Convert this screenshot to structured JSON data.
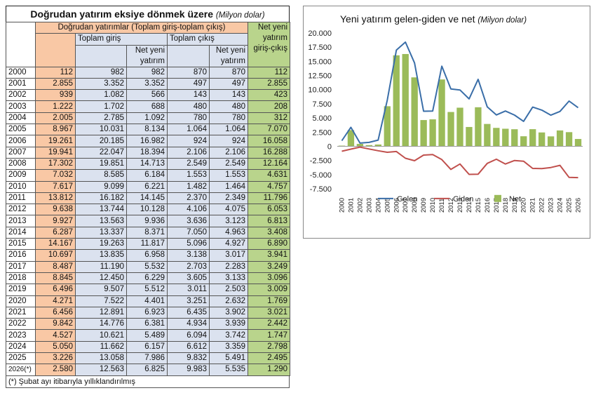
{
  "table": {
    "title": "Doğrudan yatırım eksiye dönmek üzere",
    "title_unit": "(Milyon dolar)",
    "group_header": "Doğrudan yatırımlar (Toplam giriş-toplam çıkış)",
    "group_in": "Toplam giriş",
    "group_out": "Toplam çıkış",
    "col_net_in": "Net yeni yatırım",
    "col_net_out": "Net yeni yatırım",
    "col_net_total": "Net yeni yatırım giriş-çıkış",
    "rows": [
      {
        "year": "2000",
        "direct": "112",
        "in_total": "982",
        "in_net": "982",
        "out_total": "870",
        "out_net": "870",
        "net": "112"
      },
      {
        "year": "2001",
        "direct": "2.855",
        "in_total": "3.352",
        "in_net": "3.352",
        "out_total": "497",
        "out_net": "497",
        "net": "2.855"
      },
      {
        "year": "2002",
        "direct": "939",
        "in_total": "1.082",
        "in_net": "566",
        "out_total": "143",
        "out_net": "143",
        "net": "423"
      },
      {
        "year": "2003",
        "direct": "1.222",
        "in_total": "1.702",
        "in_net": "688",
        "out_total": "480",
        "out_net": "480",
        "net": "208"
      },
      {
        "year": "2004",
        "direct": "2.005",
        "in_total": "2.785",
        "in_net": "1.092",
        "out_total": "780",
        "out_net": "780",
        "net": "312"
      },
      {
        "year": "2005",
        "direct": "8.967",
        "in_total": "10.031",
        "in_net": "8.134",
        "out_total": "1.064",
        "out_net": "1.064",
        "net": "7.070"
      },
      {
        "year": "2006",
        "direct": "19.261",
        "in_total": "20.185",
        "in_net": "16.982",
        "out_total": "924",
        "out_net": "924",
        "net": "16.058"
      },
      {
        "year": "2007",
        "direct": "19.941",
        "in_total": "22.047",
        "in_net": "18.394",
        "out_total": "2.106",
        "out_net": "2.106",
        "net": "16.288"
      },
      {
        "year": "2008",
        "direct": "17.302",
        "in_total": "19.851",
        "in_net": "14.713",
        "out_total": "2.549",
        "out_net": "2.549",
        "net": "12.164"
      },
      {
        "year": "2009",
        "direct": "7.032",
        "in_total": "8.585",
        "in_net": "6.184",
        "out_total": "1.553",
        "out_net": "1.553",
        "net": "4.631"
      },
      {
        "year": "2010",
        "direct": "7.617",
        "in_total": "9.099",
        "in_net": "6.221",
        "out_total": "1.482",
        "out_net": "1.464",
        "net": "4.757"
      },
      {
        "year": "2011",
        "direct": "13.812",
        "in_total": "16.182",
        "in_net": "14.145",
        "out_total": "2.370",
        "out_net": "2.349",
        "net": "11.796"
      },
      {
        "year": "2012",
        "direct": "9.638",
        "in_total": "13.744",
        "in_net": "10.128",
        "out_total": "4.106",
        "out_net": "4.075",
        "net": "6.053"
      },
      {
        "year": "2013",
        "direct": "9.927",
        "in_total": "13.563",
        "in_net": "9.936",
        "out_total": "3.636",
        "out_net": "3.123",
        "net": "6.813"
      },
      {
        "year": "2014",
        "direct": "6.287",
        "in_total": "13.337",
        "in_net": "8.371",
        "out_total": "7.050",
        "out_net": "4.963",
        "net": "3.408"
      },
      {
        "year": "2015",
        "direct": "14.167",
        "in_total": "19.263",
        "in_net": "11.817",
        "out_total": "5.096",
        "out_net": "4.927",
        "net": "6.890"
      },
      {
        "year": "2016",
        "direct": "10.697",
        "in_total": "13.835",
        "in_net": "6.958",
        "out_total": "3.138",
        "out_net": "3.017",
        "net": "3.941"
      },
      {
        "year": "2017",
        "direct": "8.487",
        "in_total": "11.190",
        "in_net": "5.532",
        "out_total": "2.703",
        "out_net": "2.283",
        "net": "3.249"
      },
      {
        "year": "2018",
        "direct": "8.845",
        "in_total": "12.450",
        "in_net": "6.229",
        "out_total": "3.605",
        "out_net": "3.133",
        "net": "3.096"
      },
      {
        "year": "2019",
        "direct": "6.496",
        "in_total": "9.507",
        "in_net": "5.512",
        "out_total": "3.011",
        "out_net": "2.503",
        "net": "3.009"
      },
      {
        "year": "2020",
        "direct": "4.271",
        "in_total": "7.522",
        "in_net": "4.401",
        "out_total": "3.251",
        "out_net": "2.632",
        "net": "1.769"
      },
      {
        "year": "2021",
        "direct": "6.456",
        "in_total": "12.891",
        "in_net": "6.923",
        "out_total": "6.435",
        "out_net": "3.902",
        "net": "3.021"
      },
      {
        "year": "2022",
        "direct": "9.842",
        "in_total": "14.776",
        "in_net": "6.381",
        "out_total": "4.934",
        "out_net": "3.939",
        "net": "2.442"
      },
      {
        "year": "2023",
        "direct": "4.527",
        "in_total": "10.621",
        "in_net": "5.489",
        "out_total": "6.094",
        "out_net": "3.742",
        "net": "1.747"
      },
      {
        "year": "2024",
        "direct": "5.050",
        "in_total": "11.662",
        "in_net": "6.157",
        "out_total": "6.612",
        "out_net": "3.359",
        "net": "2.798"
      },
      {
        "year": "2025",
        "direct": "3.226",
        "in_total": "13.058",
        "in_net": "7.986",
        "out_total": "9.832",
        "out_net": "5.491",
        "net": "2.495"
      },
      {
        "year": "2026(*)",
        "direct": "2.580",
        "in_total": "12.563",
        "in_net": "6.825",
        "out_total": "9.983",
        "out_net": "5.535",
        "net": "1.290"
      }
    ],
    "footnote": "(*) Şubat ayı itibarıyla yıllıklandırılmış"
  },
  "chart_data": {
    "type": "bar",
    "title": "Yeni yatırım gelen-giden ve net",
    "title_unit": "(Milyon dolar)",
    "categories": [
      "2000",
      "2001",
      "2002",
      "2003",
      "2004",
      "2005",
      "2006",
      "2007",
      "2008",
      "2009",
      "2010",
      "2011",
      "2012",
      "2013",
      "2014",
      "2015",
      "2016",
      "2017",
      "2018",
      "2019",
      "2020",
      "2021",
      "2022",
      "2023",
      "2024",
      "2025",
      "2026"
    ],
    "ylim": [
      -7500,
      20000
    ],
    "yticks": [
      -7500,
      -5000,
      -2500,
      0,
      2500,
      5000,
      7500,
      10000,
      12500,
      15000,
      17500,
      20000
    ],
    "ytick_labels": [
      "-7.500",
      "-5.000",
      "-2.500",
      "0",
      "2.500",
      "5.000",
      "7.500",
      "10.000",
      "12.500",
      "15.000",
      "17.500",
      "20.000"
    ],
    "series": [
      {
        "name": "Gelen",
        "type": "line",
        "color": "#3a6ea8",
        "values": [
          982,
          3352,
          566,
          688,
          1092,
          8134,
          16982,
          18394,
          14713,
          6184,
          6221,
          14145,
          10128,
          9936,
          8371,
          11817,
          6958,
          5532,
          6229,
          5512,
          4401,
          6923,
          6381,
          5489,
          6157,
          7986,
          6825
        ]
      },
      {
        "name": "Giden",
        "type": "line",
        "color": "#c0504d",
        "values": [
          -870,
          -497,
          -143,
          -480,
          -780,
          -1064,
          -924,
          -2106,
          -2549,
          -1553,
          -1464,
          -2349,
          -4075,
          -3123,
          -4963,
          -4927,
          -3017,
          -2283,
          -3133,
          -2503,
          -2632,
          -3902,
          -3939,
          -3742,
          -3359,
          -5491,
          -5535
        ]
      },
      {
        "name": "Net",
        "type": "bar",
        "color": "#9bbb59",
        "values": [
          112,
          2855,
          423,
          208,
          312,
          7070,
          16058,
          16288,
          12164,
          4631,
          4757,
          11796,
          6053,
          6813,
          3408,
          6890,
          3941,
          3249,
          3096,
          3009,
          1769,
          3021,
          2442,
          1747,
          2798,
          2495,
          1290
        ]
      }
    ],
    "legend": "bottom"
  }
}
